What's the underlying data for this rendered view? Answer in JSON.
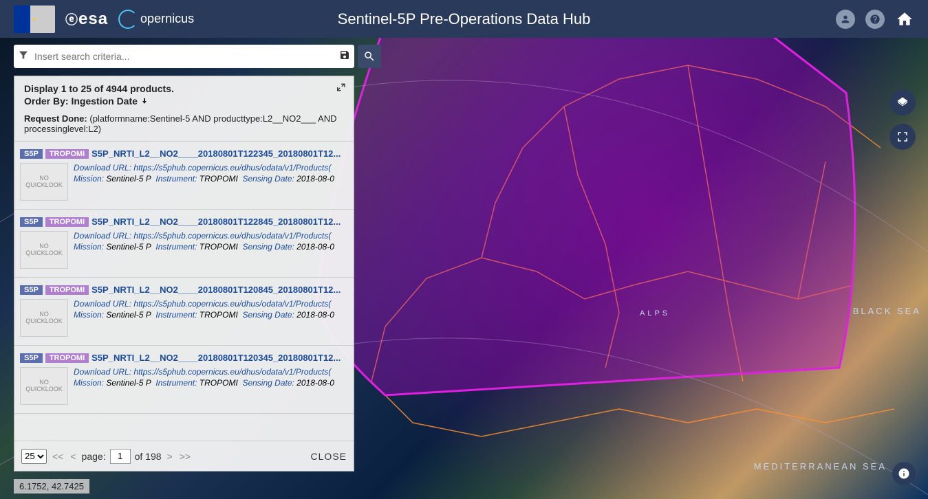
{
  "header": {
    "title": "Sentinel-5P Pre-Operations Data Hub",
    "logo_esa": "esa",
    "logo_copernicus": "opernicus"
  },
  "search": {
    "placeholder": "Insert search criteria..."
  },
  "panel": {
    "display_line": "Display 1 to 25 of 4944 products.",
    "order_by_label": "Order By: Ingestion Date",
    "request_label": "Request Done:",
    "request_query": "(platformname:Sentinel-5 AND producttype:L2__NO2___ AND processinglevel:L2)"
  },
  "badges": {
    "s5p": "S5P",
    "tropomi": "TROPOMI"
  },
  "labels": {
    "download_url": "Download URL:",
    "mission": "Mission:",
    "instrument": "Instrument:",
    "sensing_date": "Sensing Date:",
    "no_quicklook": "NO QUICKLOOK"
  },
  "results": [
    {
      "name": "S5P_NRTI_L2__NO2____20180801T122345_20180801T12...",
      "url": "https://s5phub.copernicus.eu/dhus/odata/v1/Products(",
      "mission": "Sentinel-5 P",
      "instrument": "TROPOMI",
      "sensing": "2018-08-0"
    },
    {
      "name": "S5P_NRTI_L2__NO2____20180801T122845_20180801T12...",
      "url": "https://s5phub.copernicus.eu/dhus/odata/v1/Products(",
      "mission": "Sentinel-5 P",
      "instrument": "TROPOMI",
      "sensing": "2018-08-0"
    },
    {
      "name": "S5P_NRTI_L2__NO2____20180801T120845_20180801T12...",
      "url": "https://s5phub.copernicus.eu/dhus/odata/v1/Products(",
      "mission": "Sentinel-5 P",
      "instrument": "TROPOMI",
      "sensing": "2018-08-0"
    },
    {
      "name": "S5P_NRTI_L2__NO2____20180801T120345_20180801T12...",
      "url": "https://s5phub.copernicus.eu/dhus/odata/v1/Products(",
      "mission": "Sentinel-5 P",
      "instrument": "TROPOMI",
      "sensing": "2018-08-0"
    }
  ],
  "pager": {
    "page_size": "25",
    "page_label": "page:",
    "page": "1",
    "total_pages_label": "of 198",
    "close": "CLOSE"
  },
  "map": {
    "coords": "6.1752, 42.7425",
    "sea_labels": {
      "med": "MEDITERRANEAN SEA",
      "black": "BLACK SEA",
      "alps": "ALPS"
    },
    "footprint_color": "#e020e0",
    "footprint_fill": "rgba(180,0,200,0.35)",
    "border_color": "#ff9030"
  }
}
